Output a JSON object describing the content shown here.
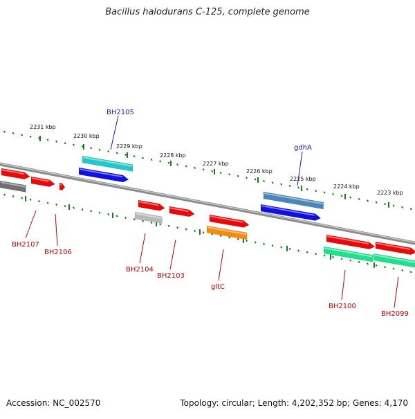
{
  "title": "Bacillus halodurans C-125, complete genome",
  "footer": {
    "accession": "Accession: NC_002570",
    "summary": "Topology: circular; Length: 4,202,352 bp; Genes: 4,170"
  },
  "scale_labels": [
    "2231 kbp",
    "2230 kbp",
    "2229 kbp",
    "2228 kbp",
    "2227 kbp",
    "2226 kbp",
    "2225 kbp",
    "2224 kbp",
    "2223 kbp"
  ],
  "gene_labels_top": [
    "BH2105",
    "gdhA"
  ],
  "gene_labels_bottom": [
    "BH2107",
    "BH2106",
    "BH2104",
    "BH2103",
    "gltC",
    "BH2100",
    "BH2099"
  ],
  "colors": {
    "red": "#e80a0a",
    "blue": "#1010e0",
    "cyan": "#20c8c8",
    "steel_blue": "#4a86b8",
    "gray": "#707070",
    "light_gray": "#b8b8b8",
    "orange": "#f08c10",
    "spring_green": "#20e090",
    "backbone": "#8a8a8a",
    "ticks": "#1a7a1a"
  }
}
